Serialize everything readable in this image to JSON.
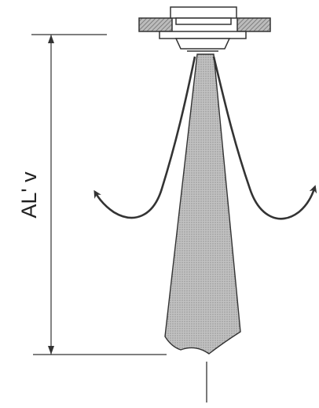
{
  "diagram": {
    "dimension_label": "AL' v",
    "colors": {
      "stroke": "#333333",
      "jet_fill": "#b5b5b5",
      "fixture_fill": "#9a9a9a"
    }
  }
}
